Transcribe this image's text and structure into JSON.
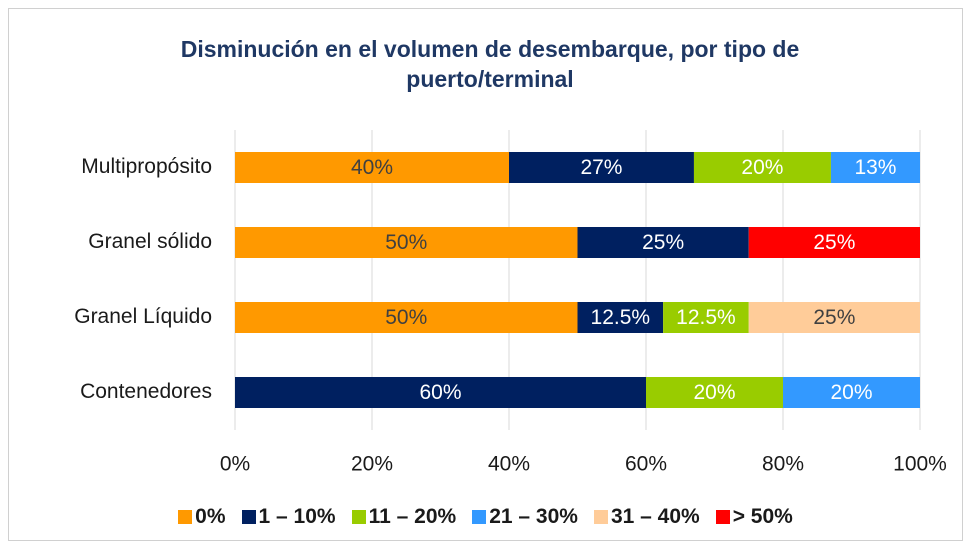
{
  "chart_data": {
    "type": "stacked-barh",
    "title": "Disminución en el volumen de desembarque, por tipo de puerto/terminal",
    "categories": [
      "Multipropósito",
      "Granel sólido",
      "Granel Líquido",
      "Contenedores"
    ],
    "series": [
      {
        "name": "0%",
        "color": "#FF9900",
        "label_color": "#404040",
        "values": [
          40,
          50,
          50,
          null
        ],
        "value_labels": [
          "40%",
          "50%",
          "50%",
          null
        ]
      },
      {
        "name": "1 – 10%",
        "color": "#002060",
        "label_color": "#FFFFFF",
        "values": [
          27,
          25,
          12.5,
          60
        ],
        "value_labels": [
          "27%",
          "25%",
          "12.5%",
          "60%"
        ]
      },
      {
        "name": "11 – 20%",
        "color": "#99CC00",
        "label_color": "#FFFFFF",
        "values": [
          20,
          null,
          12.5,
          20
        ],
        "value_labels": [
          "20%",
          null,
          "12.5%",
          "20%"
        ]
      },
      {
        "name": "21 – 30%",
        "color": "#3399FF",
        "label_color": "#FFFFFF",
        "values": [
          13,
          null,
          null,
          20
        ],
        "value_labels": [
          "13%",
          null,
          null,
          "20%"
        ]
      },
      {
        "name": "31 – 40%",
        "color": "#FFCC99",
        "label_color": "#404040",
        "values": [
          null,
          null,
          25,
          null
        ],
        "value_labels": [
          null,
          null,
          "25%",
          null
        ]
      },
      {
        "name": "> 50%",
        "color": "#FF0000",
        "label_color": "#FFFFFF",
        "values": [
          null,
          25,
          null,
          null
        ],
        "value_labels": [
          null,
          "25%",
          null,
          null
        ]
      }
    ],
    "xlim": [
      0,
      100
    ],
    "xticks": [
      {
        "value": 0,
        "label": "0%"
      },
      {
        "value": 20,
        "label": "20%"
      },
      {
        "value": 40,
        "label": "40%"
      },
      {
        "value": 60,
        "label": "60%"
      },
      {
        "value": 80,
        "label": "80%"
      },
      {
        "value": 100,
        "label": "100%"
      }
    ],
    "grid": true,
    "legend": "bottom"
  }
}
